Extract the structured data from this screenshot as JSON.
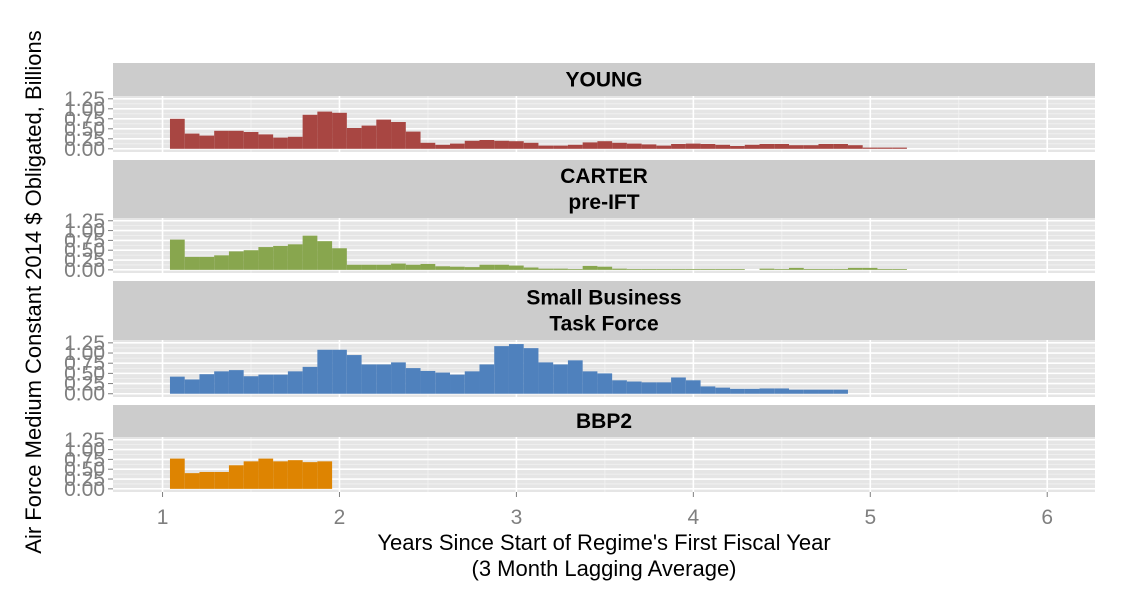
{
  "chart_data": {
    "type": "bar",
    "ylabel": "Air Force Medium Constant 2014 $ Obligated, Billions",
    "xlabel": [
      "Years Since Start of Regime's First Fiscal Year",
      "(3 Month Lagging Average)"
    ],
    "xlim": [
      0.72,
      6.27
    ],
    "ylim": [
      -0.08,
      1.32
    ],
    "x_ticks": [
      1,
      2,
      3,
      4,
      5,
      6
    ],
    "x_tick_labels": [
      "1",
      "2",
      "3",
      "4",
      "5",
      "6"
    ],
    "y_ticks": [
      0,
      0.25,
      0.5,
      0.75,
      1.0,
      1.25
    ],
    "y_tick_labels": [
      "0.00",
      "0.25",
      "0.50",
      "0.75",
      "1.00",
      "1.25"
    ],
    "bin_width": 0.0833,
    "grid": true,
    "panels": [
      {
        "strip": [
          "YOUNG"
        ],
        "color": "#A84642",
        "x_start": 1.042,
        "values": [
          0.75,
          0.38,
          0.33,
          0.45,
          0.45,
          0.42,
          0.36,
          0.28,
          0.3,
          0.85,
          0.93,
          0.9,
          0.52,
          0.58,
          0.73,
          0.67,
          0.43,
          0.15,
          0.1,
          0.13,
          0.2,
          0.22,
          0.2,
          0.19,
          0.15,
          0.08,
          0.08,
          0.1,
          0.16,
          0.19,
          0.15,
          0.13,
          0.11,
          0.08,
          0.12,
          0.13,
          0.12,
          0.1,
          0.07,
          0.1,
          0.12,
          0.12,
          0.09,
          0.09,
          0.12,
          0.12,
          0.09,
          0.03,
          0.03,
          0.03
        ]
      },
      {
        "strip": [
          "CARTER",
          "pre-IFT"
        ],
        "color": "#88A64E",
        "x_start": 1.042,
        "values": [
          0.77,
          0.33,
          0.33,
          0.37,
          0.47,
          0.5,
          0.58,
          0.61,
          0.65,
          0.87,
          0.73,
          0.55,
          0.13,
          0.13,
          0.13,
          0.16,
          0.13,
          0.15,
          0.09,
          0.08,
          0.07,
          0.13,
          0.13,
          0.11,
          0.06,
          0.03,
          0.03,
          0.02,
          0.1,
          0.08,
          0.03,
          0.02,
          0.02,
          0.02,
          0.02,
          0.02,
          0.02,
          0.02,
          0.02,
          0.0,
          0.03,
          0.02,
          0.05,
          0.02,
          0.02,
          0.02,
          0.05,
          0.05,
          0.02,
          0.02
        ]
      },
      {
        "strip": [
          "Small Business",
          "Task Force"
        ],
        "color": "#4F81BD",
        "x_start": 1.042,
        "values": [
          0.42,
          0.35,
          0.48,
          0.55,
          0.58,
          0.43,
          0.47,
          0.47,
          0.55,
          0.66,
          1.08,
          1.08,
          0.95,
          0.72,
          0.72,
          0.77,
          0.63,
          0.56,
          0.52,
          0.47,
          0.55,
          0.72,
          1.17,
          1.22,
          1.12,
          0.77,
          0.72,
          0.82,
          0.55,
          0.5,
          0.33,
          0.3,
          0.28,
          0.28,
          0.4,
          0.33,
          0.18,
          0.15,
          0.12,
          0.12,
          0.13,
          0.13,
          0.1,
          0.1,
          0.1,
          0.1,
          0.0,
          0.0,
          0.0,
          0.0
        ]
      },
      {
        "strip": [
          "BBP2"
        ],
        "color": "#DE8401",
        "x_start": 1.042,
        "values": [
          0.77,
          0.4,
          0.43,
          0.43,
          0.6,
          0.7,
          0.77,
          0.7,
          0.73,
          0.68,
          0.7
        ]
      }
    ]
  }
}
